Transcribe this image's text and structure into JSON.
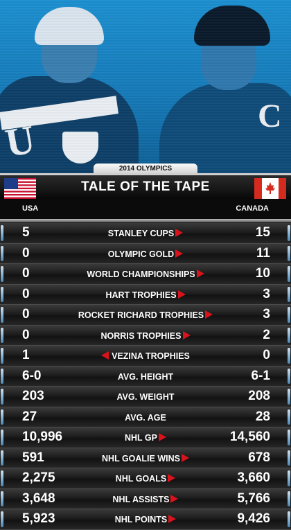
{
  "header": {
    "event": "2014 OLYMPICS",
    "title": "TALE OF THE TAPE",
    "left_team": "USA",
    "right_team": "CANADA"
  },
  "colors": {
    "accent_red": "#d8131b",
    "hero_blue": "#157ab8"
  },
  "rows": [
    {
      "category": "STANLEY CUPS",
      "usa": "5",
      "canada": "15",
      "advantage": "right"
    },
    {
      "category": "OLYMPIC GOLD",
      "usa": "0",
      "canada": "11",
      "advantage": "right"
    },
    {
      "category": "WORLD CHAMPIONSHIPS",
      "usa": "0",
      "canada": "10",
      "advantage": "right"
    },
    {
      "category": "HART TROPHIES",
      "usa": "0",
      "canada": "3",
      "advantage": "right"
    },
    {
      "category": "ROCKET RICHARD TROPHIES",
      "usa": "0",
      "canada": "3",
      "advantage": "right"
    },
    {
      "category": "NORRIS TROPHIES",
      "usa": "0",
      "canada": "2",
      "advantage": "right"
    },
    {
      "category": "VEZINA TROPHIES",
      "usa": "1",
      "canada": "0",
      "advantage": "left"
    },
    {
      "category": "AVG. HEIGHT",
      "usa": "6-0",
      "canada": "6-1",
      "advantage": "none"
    },
    {
      "category": "AVG. WEIGHT",
      "usa": "203",
      "canada": "208",
      "advantage": "none"
    },
    {
      "category": "AVG. AGE",
      "usa": "27",
      "canada": "28",
      "advantage": "none"
    },
    {
      "category": "NHL GP",
      "usa": "10,996",
      "canada": "14,560",
      "advantage": "right"
    },
    {
      "category": "NHL GOALIE WINS",
      "usa": "591",
      "canada": "678",
      "advantage": "right"
    },
    {
      "category": "NHL GOALS",
      "usa": "2,275",
      "canada": "3,660",
      "advantage": "right"
    },
    {
      "category": "NHL ASSISTS",
      "usa": "3,648",
      "canada": "5,766",
      "advantage": "right"
    },
    {
      "category": "NHL POINTS",
      "usa": "5,923",
      "canada": "9,426",
      "advantage": "right"
    }
  ]
}
